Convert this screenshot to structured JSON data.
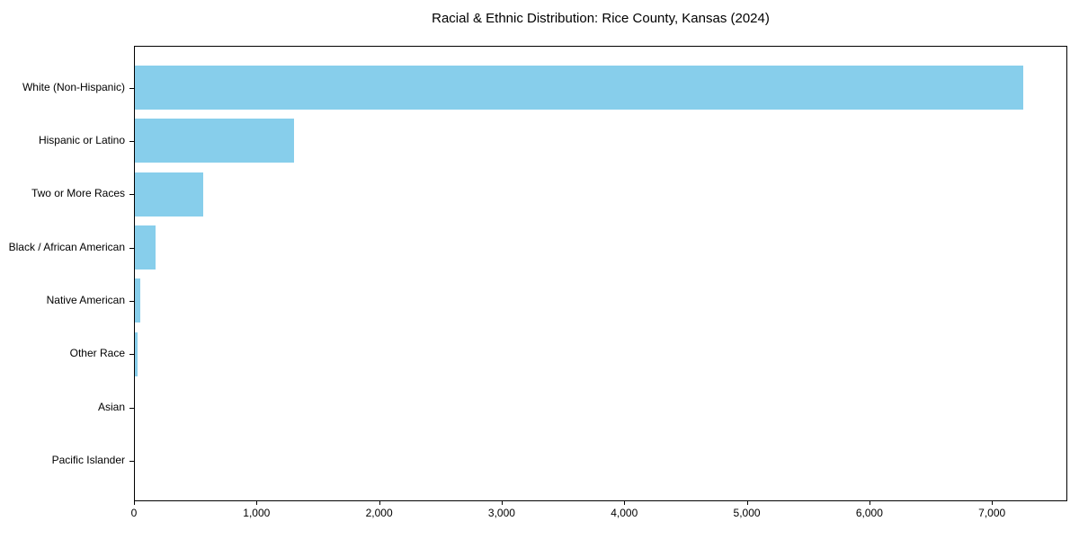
{
  "page": {
    "background_color": "#ffffff",
    "text_color": "#000000"
  },
  "chart_data": {
    "type": "bar",
    "orientation": "horizontal",
    "title": "Racial & Ethnic Distribution: Rice County, Kansas (2024)",
    "xlabel": "",
    "ylabel": "",
    "categories": [
      "White (Non-Hispanic)",
      "Hispanic or Latino",
      "Two or More Races",
      "Black / African American",
      "Native American",
      "Other Race",
      "Asian",
      "Pacific Islander"
    ],
    "values": [
      7250,
      1300,
      560,
      170,
      45,
      20,
      0,
      0
    ],
    "xlim": [
      0,
      7615
    ],
    "xticks": {
      "values": [
        0,
        1000,
        2000,
        3000,
        4000,
        5000,
        6000,
        7000
      ],
      "labels": [
        "0",
        "1,000",
        "2,000",
        "3,000",
        "4,000",
        "5,000",
        "6,000",
        "7,000"
      ]
    },
    "grid": false,
    "legend": false,
    "bar_color": "#87CEEB",
    "spine_color": "#000000",
    "tick_color": "#000000"
  }
}
